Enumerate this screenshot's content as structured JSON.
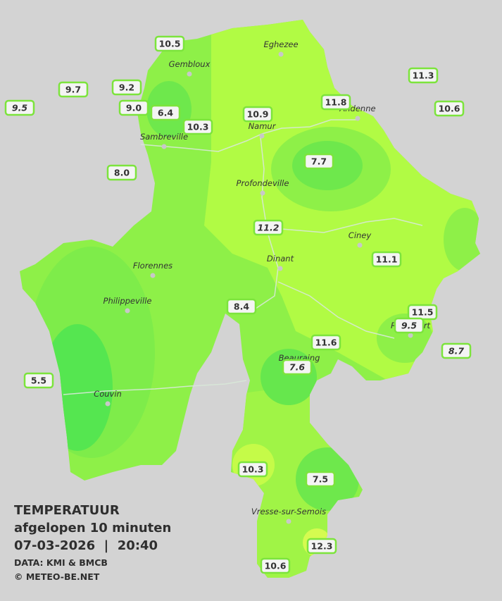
{
  "title": "TEMPERATUUR",
  "subtitle": "afgelopen 10 minuten",
  "datetime": "07-03-2026  |  20:40",
  "source": "DATA: KMI & BMCB",
  "credit": "© METEO-BE.NET",
  "cities": [
    "Eghezee",
    "Gembloux",
    "Andenne",
    "Namur",
    "Sambreville",
    "Profondeville",
    "Ciney",
    "Dinant",
    "Florennes",
    "Philippeville",
    "Rochefort",
    "Beauraing",
    "Couvin",
    "Vresse-sur-Semois"
  ],
  "stations": [
    {
      "value": "10.5"
    },
    {
      "value": "9.7"
    },
    {
      "value": "9.2"
    },
    {
      "value": "9.5",
      "italic": true
    },
    {
      "value": "9.0"
    },
    {
      "value": "6.4"
    },
    {
      "value": "10.3"
    },
    {
      "value": "10.9"
    },
    {
      "value": "11.8"
    },
    {
      "value": "11.3"
    },
    {
      "value": "10.6"
    },
    {
      "value": "7.7"
    },
    {
      "value": "8.0"
    },
    {
      "value": "11.2",
      "italic": true
    },
    {
      "value": "11.1"
    },
    {
      "value": "8.4"
    },
    {
      "value": "11.5"
    },
    {
      "value": "9.5",
      "italic": true
    },
    {
      "value": "11.6"
    },
    {
      "value": "8.7",
      "italic": true
    },
    {
      "value": "7.6",
      "italic": true
    },
    {
      "value": "5.5"
    },
    {
      "value": "10.3"
    },
    {
      "value": "7.5"
    },
    {
      "value": "12.3"
    },
    {
      "value": "10.6"
    }
  ]
}
